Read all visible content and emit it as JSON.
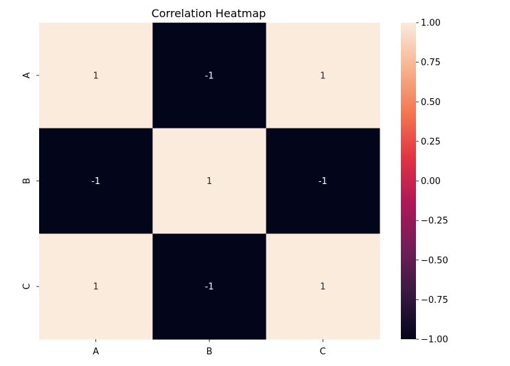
{
  "chart_data": {
    "type": "heatmap",
    "title": "Correlation Heatmap",
    "x_categories": [
      "A",
      "B",
      "C"
    ],
    "y_categories": [
      "A",
      "B",
      "C"
    ],
    "values": [
      [
        1,
        -1,
        1
      ],
      [
        -1,
        1,
        -1
      ],
      [
        1,
        -1,
        1
      ]
    ],
    "annotations": [
      [
        "1",
        "-1",
        "1"
      ],
      [
        "-1",
        "1",
        "-1"
      ],
      [
        "1",
        "-1",
        "1"
      ]
    ],
    "colorbar": {
      "vmin": -1.0,
      "vmax": 1.0,
      "ticks": [
        1.0,
        0.75,
        0.5,
        0.25,
        0.0,
        -0.25,
        -0.5,
        -0.75,
        -1.0
      ],
      "tick_labels": [
        "1.00",
        "0.75",
        "0.50",
        "0.25",
        "0.00",
        "−0.25",
        "−0.50",
        "−0.75",
        "−1.00"
      ],
      "colormap_stops": [
        "#03051a",
        "#36193e",
        "#701f57",
        "#ad1759",
        "#e13342",
        "#f37651",
        "#f6b48f",
        "#faebdd"
      ]
    },
    "annotation_colors": {
      "on_light": "#262626",
      "on_dark": "#ffffff"
    }
  }
}
